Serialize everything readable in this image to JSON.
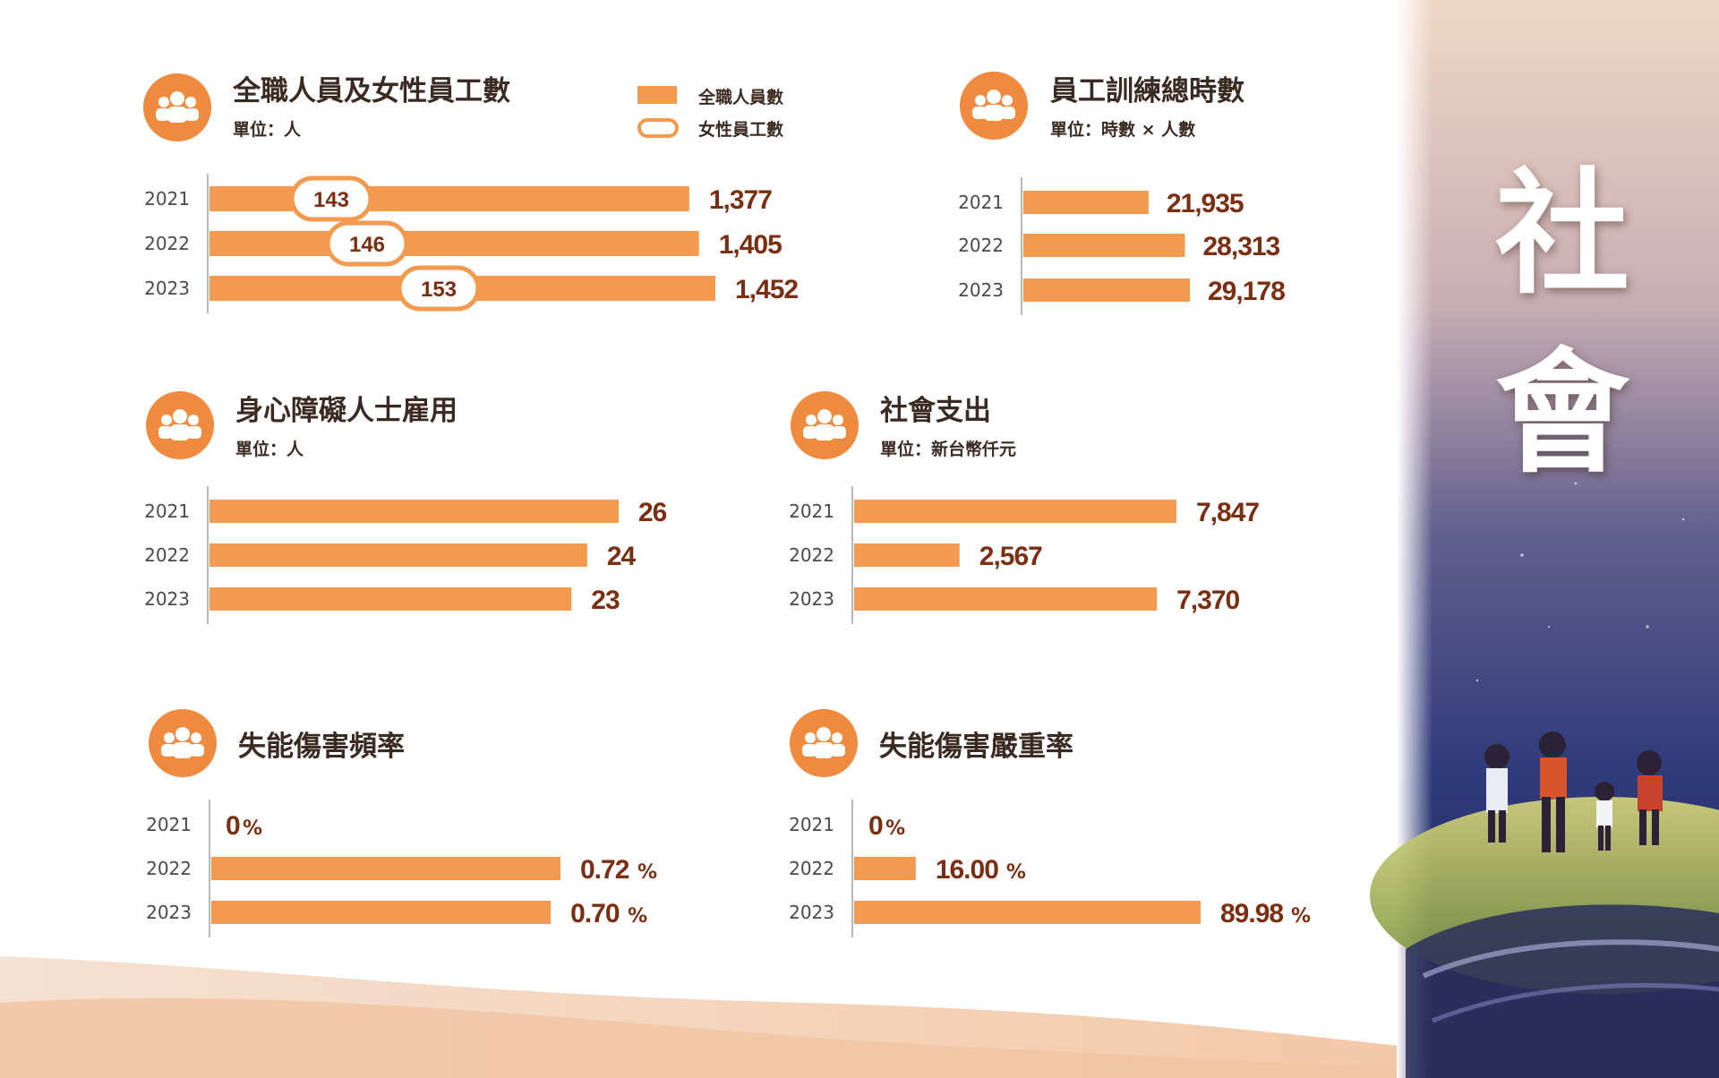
{
  "side_title": [
    "社",
    "會"
  ],
  "legend": {
    "full_time_label": "全職人員數",
    "female_label": "女性員工數"
  },
  "colors": {
    "bar": "#f39a4f",
    "value_text": "#7a2e12",
    "icon_bg": "#ef8a3e",
    "axis": "#b8b8b8",
    "year_text": "#4a4a4a"
  },
  "chart_data": [
    {
      "id": "employees",
      "type": "bar",
      "title": "全職人員及女性員工數",
      "unit_label": "單位：人",
      "categories": [
        "2021",
        "2022",
        "2023"
      ],
      "series": [
        {
          "name": "全職人員數",
          "values": [
            1377,
            1405,
            1452
          ],
          "labels": [
            "1,377",
            "1,405",
            "1,452"
          ]
        },
        {
          "name": "女性員工數",
          "values": [
            143,
            146,
            153
          ],
          "labels": [
            "143",
            "146",
            "153"
          ]
        }
      ]
    },
    {
      "id": "training",
      "type": "bar",
      "title": "員工訓練總時數",
      "unit_label": "單位：時數 × 人數",
      "categories": [
        "2021",
        "2022",
        "2023"
      ],
      "values": [
        21935,
        28313,
        29178
      ],
      "labels": [
        "21,935",
        "28,313",
        "29,178"
      ]
    },
    {
      "id": "disability",
      "type": "bar",
      "title": "身心障礙人士雇用",
      "unit_label": "單位：人",
      "categories": [
        "2021",
        "2022",
        "2023"
      ],
      "values": [
        26,
        24,
        23
      ],
      "labels": [
        "26",
        "24",
        "23"
      ]
    },
    {
      "id": "social_spend",
      "type": "bar",
      "title": "社會支出",
      "unit_label": "單位：新台幣仟元",
      "categories": [
        "2021",
        "2022",
        "2023"
      ],
      "values": [
        7847,
        2567,
        7370
      ],
      "labels": [
        "7,847",
        "2,567",
        "7,370"
      ]
    },
    {
      "id": "injury_freq",
      "type": "bar",
      "title": "失能傷害頻率",
      "unit_label": "",
      "categories": [
        "2021",
        "2022",
        "2023"
      ],
      "values": [
        0,
        0.72,
        0.7
      ],
      "labels": [
        "0",
        "0.72",
        "0.70"
      ],
      "suffix": "%"
    },
    {
      "id": "injury_sev",
      "type": "bar",
      "title": "失能傷害嚴重率",
      "unit_label": "",
      "categories": [
        "2021",
        "2022",
        "2023"
      ],
      "values": [
        0,
        16.0,
        89.98
      ],
      "labels": [
        "0",
        "16.00",
        "89.98"
      ],
      "suffix": "%"
    }
  ]
}
